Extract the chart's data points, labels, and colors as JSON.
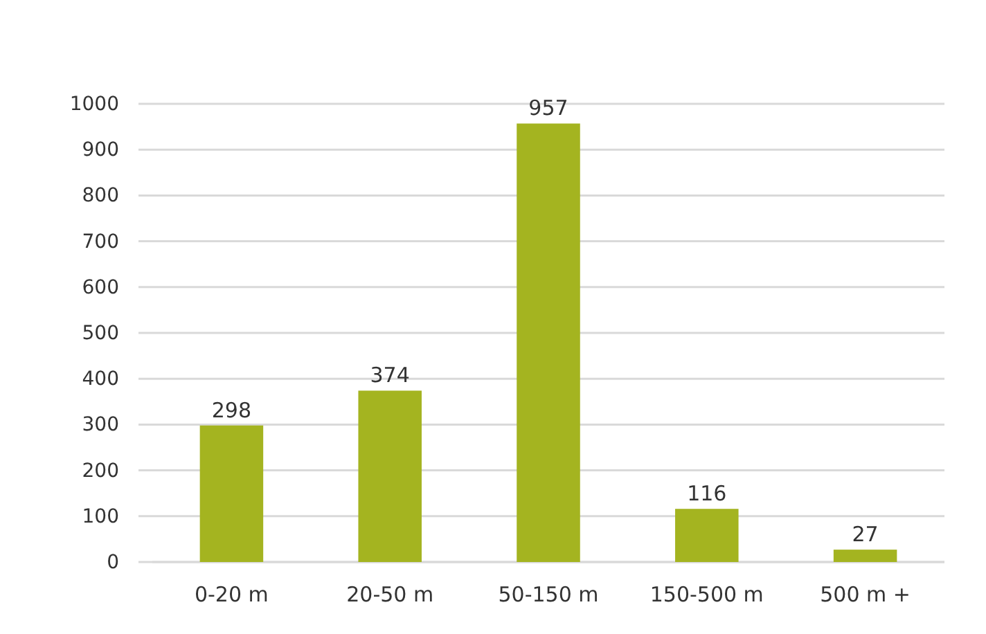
{
  "chart_data": {
    "type": "bar",
    "categories": [
      "0-20 m",
      "20-50 m",
      "50-150 m",
      "150-500 m",
      "500 m +"
    ],
    "values": [
      298,
      374,
      957,
      116,
      27
    ],
    "color": "#a4b420",
    "ylim": [
      0,
      1000
    ],
    "yticks": [
      0,
      100,
      200,
      300,
      400,
      500,
      600,
      700,
      800,
      900,
      1000
    ],
    "grid": "y",
    "data_labels": true
  }
}
